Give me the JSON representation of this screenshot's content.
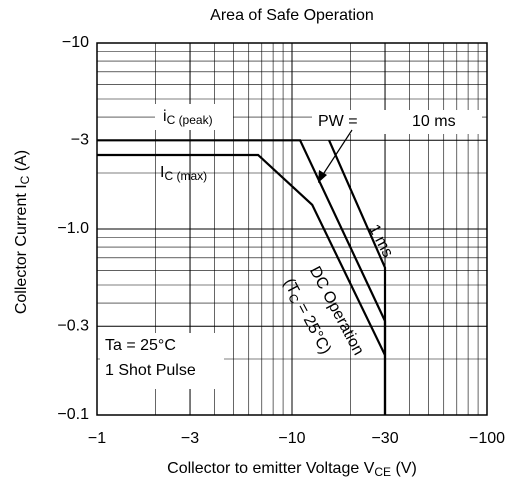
{
  "chart_data": {
    "type": "line",
    "title": "Area of Safe Operation",
    "x_label": [
      "Collector to emitter Voltage  V",
      "CE",
      "  (V)"
    ],
    "y_label": [
      "Collector Current  I",
      "C",
      "  (A)"
    ],
    "log_x": true,
    "log_y": true,
    "grid": true,
    "xlim": [
      -1,
      -100
    ],
    "ylim": [
      -0.1,
      -10
    ],
    "xticks": [
      {
        "value": -1,
        "label": "−1"
      },
      {
        "value": -3,
        "label": "−3"
      },
      {
        "value": -10,
        "label": "−10"
      },
      {
        "value": -30,
        "label": "−30"
      },
      {
        "value": -100,
        "label": "−100"
      }
    ],
    "yticks": [
      {
        "value": -0.1,
        "label": "−0.1"
      },
      {
        "value": -0.3,
        "label": "−0.3"
      },
      {
        "value": -1,
        "label": "−1.0"
      },
      {
        "value": -3,
        "label": "−3"
      },
      {
        "value": -10,
        "label": "−10"
      }
    ],
    "series": [
      {
        "color": "#000000",
        "x": [
          -1,
          -6.7,
          -12.7,
          -30,
          -30
        ],
        "values": [
          -2.5,
          -2.5,
          -1.35,
          -0.21,
          -0.1
        ]
      },
      {
        "color": "#000000",
        "x": [
          -1,
          -11,
          -30,
          -30
        ],
        "values": [
          -3,
          -3,
          -0.32,
          -0.1
        ]
      },
      {
        "color": "#000000",
        "x": [
          -15.5,
          -30,
          -30
        ],
        "values": [
          -3,
          -0.62,
          -0.21
        ]
      }
    ],
    "annotations": [
      {
        "text": "i",
        "sub": "C (peak)"
      },
      {
        "text": "I",
        "sub": "C (max)"
      },
      {
        "text": "PW ="
      },
      {
        "text": "10 ms"
      },
      {
        "text": "1 ms"
      },
      {
        "text": "DC Operation"
      },
      {
        "text": "(T",
        "sub": "C",
        "rest": " = 25°C)"
      },
      {
        "text": "Ta = 25°C"
      },
      {
        "text": "1 Shot Pulse"
      }
    ]
  }
}
